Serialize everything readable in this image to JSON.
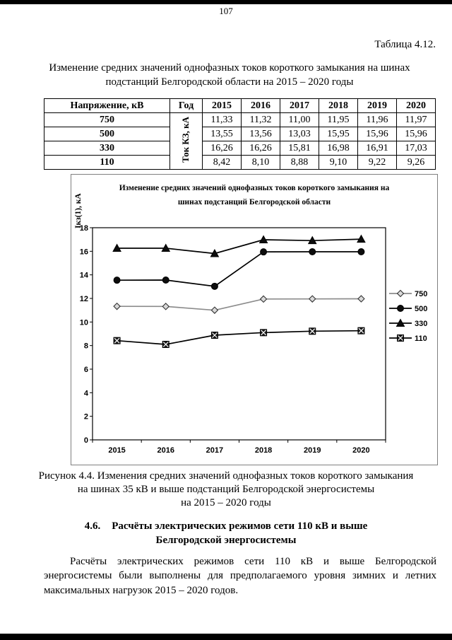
{
  "page": {
    "number": "107"
  },
  "table_section": {
    "label": "Таблица 4.12.",
    "title_line1": "Изменение средних значений однофазных токов короткого замыкания на шинах",
    "title_line2": "подстанций Белгородской области на 2015 – 2020 годы"
  },
  "table": {
    "col_voltage": "Напряжение, кВ",
    "col_year": "Год",
    "years": [
      "2015",
      "2016",
      "2017",
      "2018",
      "2019",
      "2020"
    ],
    "rotated_label": "Ток КЗ, кА",
    "rows": [
      {
        "voltage": "750",
        "values": [
          "11,33",
          "11,32",
          "11,00",
          "11,95",
          "11,96",
          "11,97"
        ]
      },
      {
        "voltage": "500",
        "values": [
          "13,55",
          "13,56",
          "13,03",
          "15,95",
          "15,96",
          "15,96"
        ]
      },
      {
        "voltage": "330",
        "values": [
          "16,26",
          "16,26",
          "15,81",
          "16,98",
          "16,91",
          "17,03"
        ]
      },
      {
        "voltage": "110",
        "values": [
          "8,42",
          "8,10",
          "8,88",
          "9,10",
          "9,22",
          "9,26"
        ]
      }
    ]
  },
  "chart": {
    "title_line1": "Изменение средних значений однофазных токов короткого замыкания на",
    "title_line2": "шинах подстанций Белгородской области",
    "y_axis_label": "Iкз(1), кА"
  },
  "chart_data": {
    "type": "line",
    "title": "Изменение средних значений однофазных токов короткого замыкания на шинах подстанций Белгородской области",
    "xlabel": "",
    "ylabel": "Iкз(1), кА",
    "x": [
      "2015",
      "2016",
      "2017",
      "2018",
      "2019",
      "2020"
    ],
    "series": [
      {
        "name": "750",
        "marker": "diamond",
        "line_color": "#8c8c8c",
        "values": [
          11.33,
          11.32,
          11.0,
          11.95,
          11.96,
          11.97
        ]
      },
      {
        "name": "500",
        "marker": "circle",
        "line_color": "#000000",
        "values": [
          13.55,
          13.56,
          13.03,
          15.95,
          15.96,
          15.96
        ]
      },
      {
        "name": "330",
        "marker": "triangle",
        "line_color": "#000000",
        "values": [
          16.26,
          16.26,
          15.81,
          16.98,
          16.91,
          17.03
        ]
      },
      {
        "name": "110",
        "marker": "x-square",
        "line_color": "#000000",
        "values": [
          8.42,
          8.1,
          8.88,
          9.1,
          9.22,
          9.26
        ]
      }
    ],
    "ylim": [
      0,
      18
    ],
    "ytick_step": 2,
    "grid": false,
    "legend_position": "right"
  },
  "figure": {
    "caption_line1": "Рисунок 4.4. Изменения средних значений однофазных токов короткого замыкания",
    "caption_line2": "на шинах 35 кВ и выше подстанций Белгородской энергосистемы",
    "caption_line3": "на 2015 – 2020 годы"
  },
  "section": {
    "number": "4.6.",
    "heading_line1": "Расчёты электрических режимов сети 110 кВ и выше",
    "heading_line2": "Белгородской энергосистемы",
    "paragraph": "Расчёты электрических режимов сети 110 кВ и выше Белгородской энергосистемы были выполнены для предполагаемого уровня зимних и летних максимальных нагрузок 2015 – 2020 годов."
  }
}
